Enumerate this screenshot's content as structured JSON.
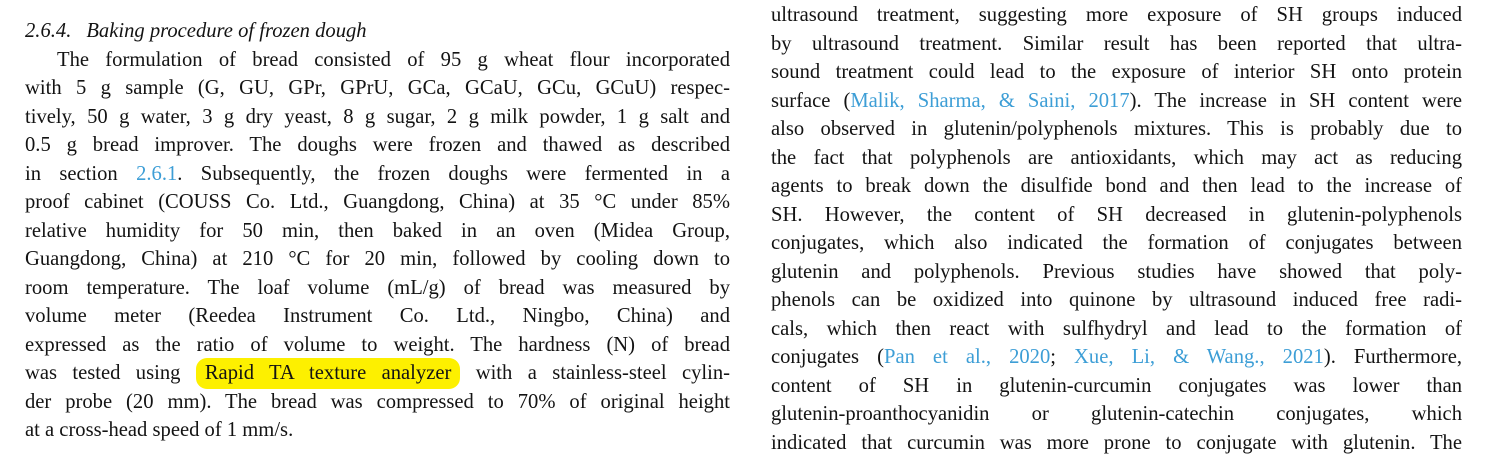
{
  "page": {
    "background": "#ffffff",
    "text_color": "#131313",
    "link_color": "#3d9ed6",
    "highlight_color": "#fdf000"
  },
  "left_column": {
    "heading": {
      "number": "2.6.4.",
      "title": "Baking procedure of frozen dough"
    },
    "paragraph": {
      "lines": [
        {
          "indent": true,
          "segments": [
            {
              "type": "text",
              "text": "The formulation of bread consisted of 95 g wheat flour incorporated"
            }
          ]
        },
        {
          "segments": [
            {
              "type": "text",
              "text": "with 5 g sample (G, GU, GPr, GPrU, GCa, GCaU, GCu, GCuU) respec-"
            }
          ]
        },
        {
          "segments": [
            {
              "type": "text",
              "text": "tively, 50 g water, 3 g dry yeast, 8 g sugar, 2 g milk powder, 1 g salt and"
            }
          ]
        },
        {
          "segments": [
            {
              "type": "text",
              "text": "0.5 g bread improver. The doughs were frozen and thawed as described"
            }
          ]
        },
        {
          "segments": [
            {
              "type": "text",
              "text": "in section "
            },
            {
              "type": "link",
              "name": "section-ref-link",
              "text": "2.6.1"
            },
            {
              "type": "text",
              "text": ". Subsequently, the frozen doughs were fermented in a"
            }
          ]
        },
        {
          "segments": [
            {
              "type": "text",
              "text": "proof cabinet (COUSS Co. Ltd., Guangdong, China) at 35 °C under 85%"
            }
          ]
        },
        {
          "segments": [
            {
              "type": "text",
              "text": "relative humidity for 50 min, then baked in an oven (Midea Group,"
            }
          ]
        },
        {
          "segments": [
            {
              "type": "text",
              "text": "Guangdong, China) at 210 °C for 20 min, followed by cooling down to"
            }
          ]
        },
        {
          "segments": [
            {
              "type": "text",
              "text": "room temperature. The loaf volume (mL/g) of bread was measured by"
            }
          ]
        },
        {
          "segments": [
            {
              "type": "text",
              "text": "volume meter (Reedea Instrument Co. Ltd., Ningbo, China) and"
            }
          ]
        },
        {
          "segments": [
            {
              "type": "text",
              "text": "expressed as the ratio of volume to weight. The hardness (N) of bread"
            }
          ]
        },
        {
          "segments": [
            {
              "type": "text",
              "text": "was tested using "
            },
            {
              "type": "highlight",
              "name": "highlighted-text",
              "text": "Rapid TA texture analyzer"
            },
            {
              "type": "text",
              "text": " with a stainless-steel cylin-"
            }
          ]
        },
        {
          "segments": [
            {
              "type": "text",
              "text": "der probe (20 mm). The bread was compressed to 70% of original height"
            }
          ]
        },
        {
          "last": true,
          "segments": [
            {
              "type": "text",
              "text": "at a cross-head speed of 1 mm/s."
            }
          ]
        }
      ]
    }
  },
  "right_column": {
    "paragraph": {
      "lines": [
        {
          "segments": [
            {
              "type": "text",
              "text": "ultrasound treatment, suggesting more exposure of SH groups induced"
            }
          ]
        },
        {
          "segments": [
            {
              "type": "text",
              "text": "by ultrasound treatment. Similar result has been reported that ultra-"
            }
          ]
        },
        {
          "segments": [
            {
              "type": "text",
              "text": "sound treatment could lead to the exposure of interior SH onto protein"
            }
          ]
        },
        {
          "segments": [
            {
              "type": "text",
              "text": "surface ("
            },
            {
              "type": "link",
              "name": "citation-link",
              "text": "Malik, Sharma, & Saini, 2017"
            },
            {
              "type": "text",
              "text": "). The increase in SH content were"
            }
          ]
        },
        {
          "segments": [
            {
              "type": "text",
              "text": "also observed in glutenin/polyphenols mixtures. This is probably due to"
            }
          ]
        },
        {
          "segments": [
            {
              "type": "text",
              "text": "the fact that polyphenols are antioxidants, which may act as reducing"
            }
          ]
        },
        {
          "segments": [
            {
              "type": "text",
              "text": "agents to break down the disulfide bond and then lead to the increase of"
            }
          ]
        },
        {
          "segments": [
            {
              "type": "text",
              "text": "SH. However, the content of SH decreased in glutenin-polyphenols"
            }
          ]
        },
        {
          "segments": [
            {
              "type": "text",
              "text": "conjugates, which also indicated the formation of conjugates between"
            }
          ]
        },
        {
          "segments": [
            {
              "type": "text",
              "text": "glutenin and polyphenols. Previous studies have showed that poly-"
            }
          ]
        },
        {
          "segments": [
            {
              "type": "text",
              "text": "phenols can be oxidized into quinone by ultrasound induced free radi-"
            }
          ]
        },
        {
          "segments": [
            {
              "type": "text",
              "text": "cals, which then react with sulfhydryl and lead to the formation of"
            }
          ]
        },
        {
          "segments": [
            {
              "type": "text",
              "text": "conjugates ("
            },
            {
              "type": "link",
              "name": "citation-link",
              "text": "Pan et al., 2020"
            },
            {
              "type": "text",
              "text": "; "
            },
            {
              "type": "link",
              "name": "citation-link",
              "text": "Xue, Li, & Wang., 2021"
            },
            {
              "type": "text",
              "text": "). Furthermore,"
            }
          ]
        },
        {
          "segments": [
            {
              "type": "text",
              "text": "content of SH in glutenin-curcumin conjugates was lower than"
            }
          ]
        },
        {
          "segments": [
            {
              "type": "text",
              "text": "glutenin-proanthocyanidin or glutenin-catechin conjugates, which"
            }
          ]
        },
        {
          "segments": [
            {
              "type": "text",
              "text": "indicated that curcumin was more prone to conjugate with glutenin. The"
            }
          ]
        }
      ]
    }
  }
}
